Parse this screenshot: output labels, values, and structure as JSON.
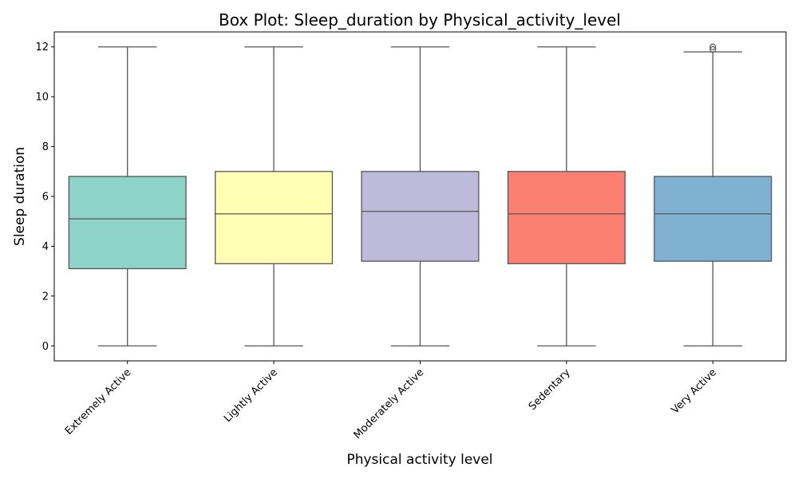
{
  "chart_data": {
    "type": "box",
    "title": "Box Plot: Sleep_duration by Physical_activity_level",
    "xlabel": "Physical activity level",
    "ylabel": "Sleep duration",
    "ylim": [
      -0.6,
      12.6
    ],
    "yticks": [
      0,
      2,
      4,
      6,
      8,
      10,
      12
    ],
    "grid": false,
    "categories": [
      "Extremely Active",
      "Lightly Active",
      "Moderately Active",
      "Sedentary",
      "Very Active"
    ],
    "colors": [
      "#8dd3c7",
      "#ffffb3",
      "#bebada",
      "#fb8072",
      "#80b1d3"
    ],
    "boxes": [
      {
        "category": "Extremely Active",
        "min": 0,
        "q1": 3.1,
        "median": 5.1,
        "q3": 6.8,
        "max": 12,
        "outliers": []
      },
      {
        "category": "Lightly Active",
        "min": 0,
        "q1": 3.3,
        "median": 5.3,
        "q3": 7.0,
        "max": 12,
        "outliers": []
      },
      {
        "category": "Moderately Active",
        "min": 0,
        "q1": 3.4,
        "median": 5.4,
        "q3": 7.0,
        "max": 12,
        "outliers": []
      },
      {
        "category": "Sedentary",
        "min": 0,
        "q1": 3.3,
        "median": 5.3,
        "q3": 7.0,
        "max": 12,
        "outliers": []
      },
      {
        "category": "Very Active",
        "min": 0,
        "q1": 3.4,
        "median": 5.3,
        "q3": 6.8,
        "max": 11.8,
        "outliers": [
          11.9,
          12.0
        ]
      }
    ]
  }
}
